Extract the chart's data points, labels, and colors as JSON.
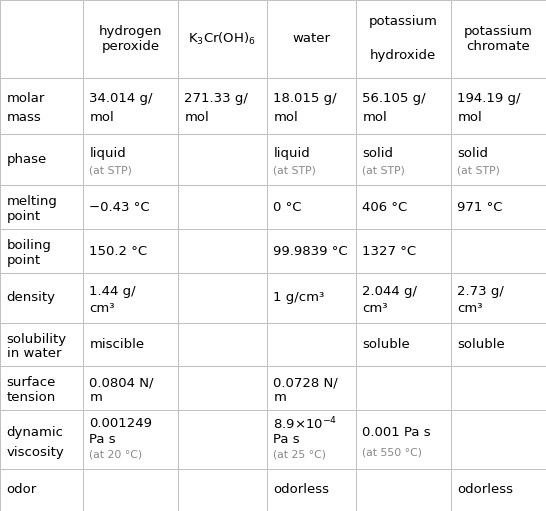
{
  "columns": [
    "",
    "hydrogen\nperoxide",
    "K$_3$Cr(OH)$_6$",
    "water",
    "potassium\n\nhydroxide",
    "potassium\nchromate"
  ],
  "col_widths_ratio": [
    1.35,
    1.55,
    1.45,
    1.45,
    1.55,
    1.55
  ],
  "row_heights_ratio": [
    1.25,
    0.9,
    0.82,
    0.72,
    0.7,
    0.8,
    0.7,
    0.7,
    0.95,
    0.68
  ],
  "row_data": [
    {
      "label": "molar\nmass",
      "cells": [
        "34.014 g/\nmol",
        "271.33 g/\nmol",
        "18.015 g/\nmol",
        "56.105 g/\nmol",
        "194.19 g/\nmol"
      ]
    },
    {
      "label": "phase",
      "cells": [
        [
          "liquid",
          "(at STP)"
        ],
        "",
        [
          "liquid",
          "(at STP)"
        ],
        [
          "solid",
          "(at STP)"
        ],
        [
          "solid",
          "(at STP)"
        ]
      ]
    },
    {
      "label": "melting\npoint",
      "cells": [
        "−0.43 °C",
        "",
        "0 °C",
        "406 °C",
        "971 °C"
      ]
    },
    {
      "label": "boiling\npoint",
      "cells": [
        "150.2 °C",
        "",
        "99.9839 °C",
        "1327 °C",
        ""
      ]
    },
    {
      "label": "density",
      "cells": [
        "1.44 g/\ncm³",
        "",
        "1 g/cm³",
        "2.044 g/\ncm³",
        "2.73 g/\ncm³"
      ]
    },
    {
      "label": "solubility\nin water",
      "cells": [
        "miscible",
        "",
        "",
        "soluble",
        "soluble"
      ]
    },
    {
      "label": "surface\ntension",
      "cells": [
        "0.0804 N/\nm",
        "",
        "0.0728 N/\nm",
        "",
        ""
      ]
    },
    {
      "label": "dynamic\nviscosity",
      "cells": [
        [
          "0.001249",
          "Pa s",
          "(at 20 °C)"
        ],
        "",
        [
          "8.9×10$^{-4}$",
          "Pa s",
          "(at 25 °C)"
        ],
        [
          "0.001 Pa s",
          "(at 550 °C)"
        ],
        ""
      ]
    },
    {
      "label": "odor",
      "cells": [
        "",
        "",
        "odorless",
        "",
        "odorless"
      ]
    }
  ],
  "border_color": "#c0c0c0",
  "text_color": "#000000",
  "sub_text_color": "#888888",
  "header_fontsize": 9.5,
  "cell_fontsize": 9.5,
  "sub_fontsize": 7.8,
  "label_fontsize": 9.5,
  "bg_color": "#ffffff"
}
